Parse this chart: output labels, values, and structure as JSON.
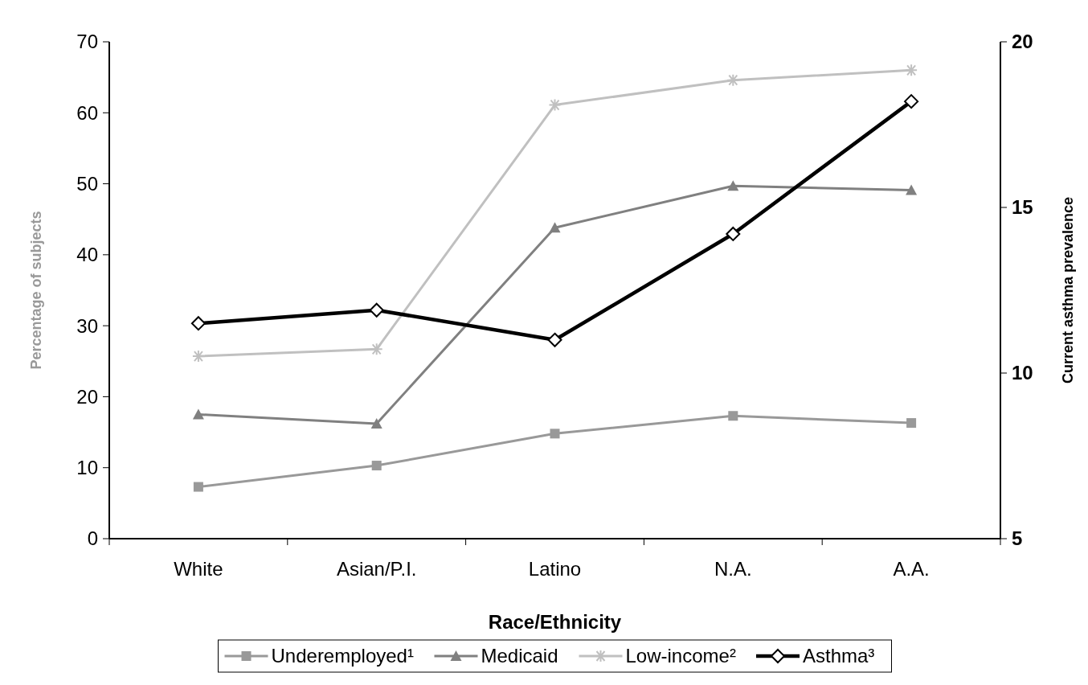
{
  "chart_data": {
    "type": "line",
    "xlabel": "Race/Ethnicity",
    "ylabel": "Percentage of subjects",
    "y2label": "Current asthma prevalence",
    "categories": [
      "White",
      "Asian/P.I.",
      "Latino",
      "N.A.",
      "A.A."
    ],
    "ylim": [
      0,
      70
    ],
    "yticks": [
      0,
      10,
      20,
      30,
      40,
      50,
      60,
      70
    ],
    "y2lim": [
      5,
      20
    ],
    "y2ticks": [
      5,
      10,
      15,
      20
    ],
    "legend": "bottom",
    "grid": false,
    "series": [
      {
        "name": "Underemployed¹",
        "color": "#999999",
        "marker": "square",
        "values": [
          7.3,
          10.3,
          14.8,
          17.3,
          16.3
        ]
      },
      {
        "name": "Medicaid",
        "color": "#808080",
        "marker": "triangle",
        "values": [
          17.5,
          16.2,
          43.8,
          49.7,
          49.1
        ]
      },
      {
        "name": "Low-income²",
        "color": "#c0c0c0",
        "marker": "cross",
        "values": [
          25.7,
          26.7,
          61.1,
          64.6,
          66.0
        ]
      },
      {
        "name": "Asthma³",
        "color": "#000000",
        "marker": "diamond",
        "axis": "y2",
        "values": [
          11.5,
          11.9,
          11.0,
          14.2,
          18.2
        ]
      }
    ]
  }
}
